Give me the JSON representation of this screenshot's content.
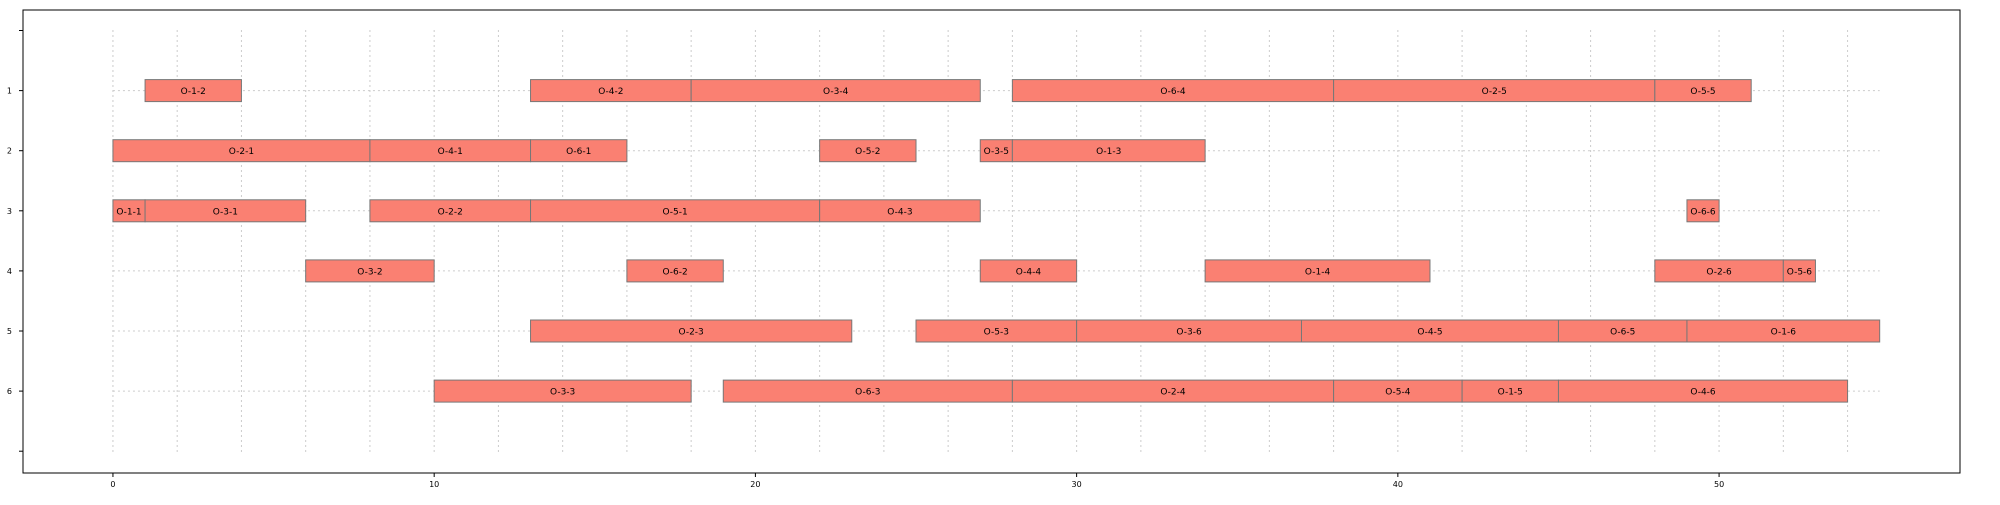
{
  "chart_data": {
    "type": "gantt",
    "title": "",
    "xlabel": "",
    "ylabel": "",
    "grid": true,
    "xlim": [
      -2.8,
      57.5
    ],
    "ylim": [
      0.5,
      7.5
    ],
    "x_ticks": [
      0,
      10,
      20,
      30,
      40,
      50
    ],
    "y_ticks": [
      "",
      "1",
      "2",
      "3",
      "4",
      "5",
      "6",
      ""
    ],
    "rows": [
      "1",
      "2",
      "3",
      "4",
      "5",
      "6"
    ],
    "colors": {
      "bar_fill": "#fa8072",
      "bar_edge": "#777777",
      "grid": "#cccccc",
      "axis": "#000000"
    },
    "tasks": [
      {
        "label": "O-1-2",
        "row": "1",
        "start": 1,
        "end": 4
      },
      {
        "label": "O-4-2",
        "row": "1",
        "start": 13,
        "end": 18
      },
      {
        "label": "O-3-4",
        "row": "1",
        "start": 18,
        "end": 27
      },
      {
        "label": "O-6-4",
        "row": "1",
        "start": 28,
        "end": 38
      },
      {
        "label": "O-2-5",
        "row": "1",
        "start": 38,
        "end": 48
      },
      {
        "label": "O-5-5",
        "row": "1",
        "start": 48,
        "end": 51
      },
      {
        "label": "O-2-1",
        "row": "2",
        "start": 0,
        "end": 8
      },
      {
        "label": "O-4-1",
        "row": "2",
        "start": 8,
        "end": 13
      },
      {
        "label": "O-6-1",
        "row": "2",
        "start": 13,
        "end": 16
      },
      {
        "label": "O-5-2",
        "row": "2",
        "start": 22,
        "end": 25
      },
      {
        "label": "O-3-5",
        "row": "2",
        "start": 27,
        "end": 28
      },
      {
        "label": "O-1-3",
        "row": "2",
        "start": 28,
        "end": 34
      },
      {
        "label": "O-1-1",
        "row": "3",
        "start": 0,
        "end": 1
      },
      {
        "label": "O-3-1",
        "row": "3",
        "start": 1,
        "end": 6
      },
      {
        "label": "O-2-2",
        "row": "3",
        "start": 8,
        "end": 13
      },
      {
        "label": "O-5-1",
        "row": "3",
        "start": 13,
        "end": 22
      },
      {
        "label": "O-4-3",
        "row": "3",
        "start": 22,
        "end": 27
      },
      {
        "label": "O-6-6",
        "row": "3",
        "start": 49,
        "end": 50
      },
      {
        "label": "O-3-2",
        "row": "4",
        "start": 6,
        "end": 10
      },
      {
        "label": "O-6-2",
        "row": "4",
        "start": 16,
        "end": 19
      },
      {
        "label": "O-4-4",
        "row": "4",
        "start": 27,
        "end": 30
      },
      {
        "label": "O-1-4",
        "row": "4",
        "start": 34,
        "end": 41
      },
      {
        "label": "O-2-6",
        "row": "4",
        "start": 48,
        "end": 52
      },
      {
        "label": "O-5-6",
        "row": "4",
        "start": 52,
        "end": 53
      },
      {
        "label": "O-2-3",
        "row": "5",
        "start": 13,
        "end": 23
      },
      {
        "label": "O-5-3",
        "row": "5",
        "start": 25,
        "end": 30
      },
      {
        "label": "O-3-6",
        "row": "5",
        "start": 30,
        "end": 37
      },
      {
        "label": "O-4-5",
        "row": "5",
        "start": 37,
        "end": 45
      },
      {
        "label": "O-6-5",
        "row": "5",
        "start": 45,
        "end": 49
      },
      {
        "label": "O-1-6",
        "row": "5",
        "start": 49,
        "end": 55
      },
      {
        "label": "O-3-3",
        "row": "6",
        "start": 10,
        "end": 18
      },
      {
        "label": "O-6-3",
        "row": "6",
        "start": 19,
        "end": 28
      },
      {
        "label": "O-2-4",
        "row": "6",
        "start": 28,
        "end": 38
      },
      {
        "label": "O-5-4",
        "row": "6",
        "start": 38,
        "end": 42
      },
      {
        "label": "O-1-5",
        "row": "6",
        "start": 42,
        "end": 45
      },
      {
        "label": "O-4-6",
        "row": "6",
        "start": 45,
        "end": 54
      }
    ]
  }
}
